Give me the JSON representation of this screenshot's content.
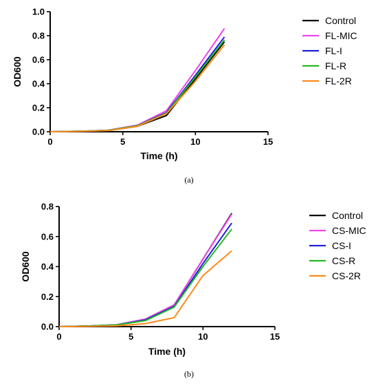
{
  "chart_data": [
    {
      "type": "line",
      "panel_label": "(a)",
      "xlabel": "Time (h)",
      "ylabel": "OD600",
      "xlim": [
        0,
        15
      ],
      "ylim": [
        0,
        1.0
      ],
      "x_ticks": [
        0,
        5,
        10,
        15
      ],
      "y_ticks": [
        0.0,
        0.2,
        0.4,
        0.6,
        0.8,
        1.0
      ],
      "x_tick_labels": [
        "0",
        "5",
        "10",
        "15"
      ],
      "y_tick_labels": [
        "0.0",
        "0.2",
        "0.4",
        "0.6",
        "0.8",
        "1.0"
      ],
      "x": [
        0,
        2,
        4,
        6,
        8,
        10,
        12
      ],
      "legend_position": "right",
      "series": [
        {
          "name": "Control",
          "color": "#000000",
          "values": [
            0.0,
            0.003,
            0.01,
            0.045,
            0.135,
            0.44,
            0.75
          ]
        },
        {
          "name": "FL-MIC",
          "color": "#ee44ee",
          "values": [
            0.0,
            0.004,
            0.013,
            0.055,
            0.175,
            0.51,
            0.86
          ]
        },
        {
          "name": "FL-I",
          "color": "#1f1fd6",
          "values": [
            0.0,
            0.004,
            0.012,
            0.05,
            0.16,
            0.47,
            0.79
          ]
        },
        {
          "name": "FL-R",
          "color": "#22bb22",
          "values": [
            0.0,
            0.004,
            0.012,
            0.05,
            0.155,
            0.455,
            0.765
          ]
        },
        {
          "name": "FL-2R",
          "color": "#ff8a1a",
          "values": [
            0.0,
            0.003,
            0.01,
            0.045,
            0.15,
            0.42,
            0.725
          ]
        }
      ]
    },
    {
      "type": "line",
      "panel_label": "(b)",
      "xlabel": "Time (h)",
      "ylabel": "OD600",
      "xlim": [
        0,
        15
      ],
      "ylim": [
        0,
        0.8
      ],
      "x_ticks": [
        0,
        5,
        10,
        15
      ],
      "y_ticks": [
        0.0,
        0.2,
        0.4,
        0.6,
        0.8
      ],
      "x_tick_labels": [
        "0",
        "5",
        "10",
        "15"
      ],
      "y_tick_labels": [
        "0.0",
        "0.2",
        "0.4",
        "0.6",
        "0.8"
      ],
      "x": [
        0,
        2,
        4,
        6,
        8,
        10,
        12
      ],
      "legend_position": "right",
      "series": [
        {
          "name": "Control",
          "color": "#000000",
          "values": [
            0.0,
            0.004,
            0.012,
            0.05,
            0.145,
            0.45,
            0.755
          ]
        },
        {
          "name": "CS-MIC",
          "color": "#ee44ee",
          "values": [
            0.0,
            0.004,
            0.012,
            0.05,
            0.145,
            0.45,
            0.75
          ]
        },
        {
          "name": "CS-I",
          "color": "#1f1fd6",
          "values": [
            0.0,
            0.004,
            0.011,
            0.045,
            0.135,
            0.42,
            0.69
          ]
        },
        {
          "name": "CS-R",
          "color": "#22bb22",
          "values": [
            0.0,
            0.004,
            0.011,
            0.04,
            0.13,
            0.4,
            0.65
          ]
        },
        {
          "name": "CS-2R",
          "color": "#ff8a1a",
          "values": [
            0.0,
            0.002,
            0.005,
            0.02,
            0.06,
            0.34,
            0.505
          ]
        }
      ]
    }
  ]
}
